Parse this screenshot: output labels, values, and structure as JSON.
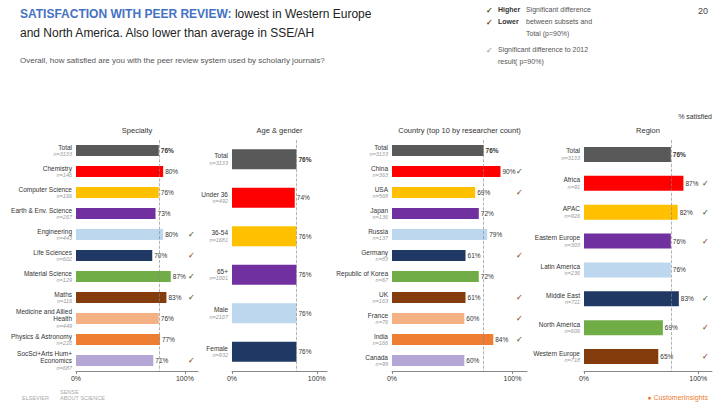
{
  "title": {
    "bold": "SATISFACTION WITH PEER REVIEW:",
    "bold_color": "#4472c4",
    "normal": " lowest in Western Europe",
    "line2": "and North America. Also lower than average in SSE/AH",
    "color": "#222222"
  },
  "subtitle": {
    "text": "Overall, how satisfied are you with the peer review system used by scholarly journals?",
    "color": "#555555"
  },
  "page_number": "20",
  "value_axis_label": "% satisfied",
  "marker_colors": {
    "higher": "#375623",
    "lower": "#843c0c"
  },
  "key": {
    "symbol": "✓",
    "rows": [
      {
        "symbol_color": "#375623",
        "label": "Higher",
        "text": "Significant difference"
      },
      {
        "symbol_color": "#843c0c",
        "label": "Lower",
        "text": "between subsets and"
      },
      {
        "text": "Total (p=90%)"
      },
      {
        "symbol_color": "#aaaaaa",
        "text": "Significant difference to 2012"
      },
      {
        "text": "result( p=90%)"
      }
    ]
  },
  "footer": [
    {
      "text": "ELSEVIER",
      "color": "#aaaaaa"
    },
    {
      "text": "SENSE\nABOUT SCIENCE",
      "color": "#aaaaaa"
    },
    {
      "text": "● CustomerInsights",
      "color": "#ed7d31"
    }
  ],
  "chart_data": [
    {
      "type": "bar",
      "orientation": "horizontal",
      "title": "Specialty",
      "categories": [
        "Total",
        "Chemistry",
        "Computer Science",
        "Earth & Env. Science",
        "Engineering",
        "Life Sciences",
        "Material Science",
        "Maths",
        "Medicine and Allied\nHealth",
        "Physics & Astronomy",
        "SocSci+Arts Hum+\nEconomics"
      ],
      "sublabels": [
        "n=3133",
        "n=146",
        "n=166",
        "n=267",
        "n=443",
        "n=602",
        "n=129",
        "n=116",
        "n=449",
        "n=220",
        "n=687"
      ],
      "values": [
        76,
        80,
        76,
        73,
        80,
        70,
        87,
        83,
        76,
        77,
        71
      ],
      "value_labels": [
        "76%",
        "80%",
        "76%",
        "73%",
        "80%",
        "70%",
        "87%",
        "83%",
        "76%",
        "77%",
        "71%"
      ],
      "colors": [
        "#595959",
        "#ff0000",
        "#ffc000",
        "#7030a0",
        "#bdd7ee",
        "#1f3864",
        "#70ad47",
        "#843c0c",
        "#f4b183",
        "#ed7d31",
        "#b4a7d6"
      ],
      "markers": [
        null,
        null,
        null,
        null,
        "higher",
        "lower",
        "higher",
        "higher",
        null,
        null,
        "lower"
      ],
      "xlim": [
        0,
        112
      ],
      "xticks": [
        {
          "value": 0,
          "label": "0%"
        },
        {
          "value": 100,
          "label": "100%"
        }
      ],
      "reference_line": 76,
      "data_labels": true,
      "grid": false
    },
    {
      "type": "bar",
      "orientation": "horizontal",
      "title": "Age & gender",
      "categories": [
        "Total",
        "Under 36",
        "36-54",
        "65+",
        "Male",
        "Female"
      ],
      "sublabels": [
        "n=3133",
        "n=492",
        "n=1681",
        "n=1001",
        "n=2107",
        "n=932"
      ],
      "values": [
        76,
        74,
        76,
        76,
        76,
        76
      ],
      "value_labels": [
        "76%",
        "74%",
        "76%",
        "76%",
        "76%",
        "76%"
      ],
      "colors": [
        "#595959",
        "#ff0000",
        "#ffc000",
        "#7030a0",
        "#bdd7ee",
        "#1f3864"
      ],
      "markers": [
        null,
        null,
        null,
        null,
        null,
        null
      ],
      "xlim": [
        0,
        112
      ],
      "xticks": [
        {
          "value": 0,
          "label": "0%"
        },
        {
          "value": 100,
          "label": "100%"
        }
      ],
      "reference_line": 76,
      "data_labels": true,
      "grid": false
    },
    {
      "type": "bar",
      "orientation": "horizontal",
      "title": "Country (top 10 by researcher count)",
      "categories": [
        "Total",
        "China",
        "USA",
        "Japan",
        "Russia",
        "Germany",
        "Republic of Korea",
        "UK",
        "France",
        "India",
        "Canada"
      ],
      "sublabels": [
        "n=3133",
        "n=363",
        "n=568",
        "n=136",
        "n=137",
        "n=83",
        "n=67",
        "n=163",
        "n=76",
        "n=166",
        "n=99"
      ],
      "values": [
        76,
        90,
        69,
        72,
        79,
        61,
        72,
        61,
        60,
        84,
        60
      ],
      "value_labels": [
        "76%",
        "90%",
        "69%",
        "72%",
        "79%",
        "61%",
        "72%",
        "61%",
        "60%",
        "84%",
        "60%"
      ],
      "colors": [
        "#595959",
        "#ff0000",
        "#ffc000",
        "#7030a0",
        "#bdd7ee",
        "#1f3864",
        "#70ad47",
        "#843c0c",
        "#f4b183",
        "#ed7d31",
        "#b4a7d6"
      ],
      "markers": [
        null,
        "higher",
        "lower",
        null,
        null,
        "lower",
        null,
        "lower",
        "lower",
        "higher",
        null
      ],
      "xlim": [
        0,
        112
      ],
      "xticks": [
        {
          "value": 0,
          "label": "0%"
        },
        {
          "value": 100,
          "label": "100%"
        }
      ],
      "reference_line": 76,
      "data_labels": true,
      "grid": false
    },
    {
      "type": "bar",
      "orientation": "horizontal",
      "title": "Region",
      "categories": [
        "Total",
        "Africa",
        "APAC",
        "Eastern Europe",
        "Latin America",
        "Middle East",
        "North America",
        "Western Europe"
      ],
      "sublabels": [
        "n=3133",
        "n=91",
        "n=926",
        "n=303",
        "n=236",
        "n=711",
        "n=606",
        "n=718"
      ],
      "values": [
        76,
        87,
        82,
        76,
        76,
        83,
        69,
        65
      ],
      "value_labels": [
        "76%",
        "87%",
        "82%",
        "76%",
        "76%",
        "83%",
        "69%",
        "65%"
      ],
      "colors": [
        "#595959",
        "#ff0000",
        "#ffc000",
        "#7030a0",
        "#bdd7ee",
        "#1f3864",
        "#70ad47",
        "#843c0c"
      ],
      "markers": [
        null,
        "higher",
        "higher",
        "lower",
        null,
        "higher",
        "lower",
        "lower"
      ],
      "xlim": [
        0,
        112
      ],
      "xticks": [
        {
          "value": 0,
          "label": "0%"
        },
        {
          "value": 100,
          "label": "100%"
        }
      ],
      "reference_line": 76,
      "data_labels": true,
      "grid": false
    }
  ]
}
